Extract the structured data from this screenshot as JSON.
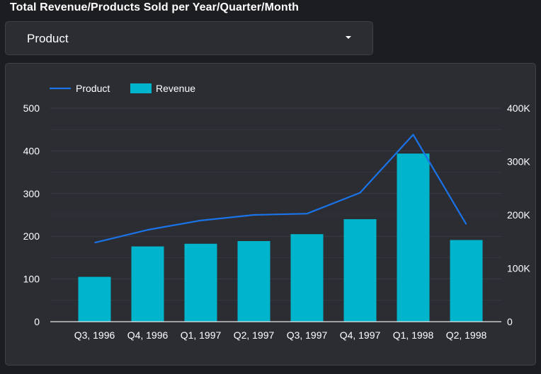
{
  "header": {
    "title": "Total Revenue/Products Sold per Year/Quarter/Month"
  },
  "filter": {
    "selected": "Product",
    "icon": "caret-down-icon"
  },
  "colors": {
    "background": "#1c1d21",
    "panel": "#2b2d33",
    "bar": "#00b4cc",
    "line": "#1a73e8",
    "grid": "#3a3d44",
    "text": "#ffffff"
  },
  "chart_data": {
    "type": "bar",
    "categories": [
      "Q3, 1996",
      "Q4, 1996",
      "Q1, 1997",
      "Q2, 1997",
      "Q3, 1997",
      "Q4, 1997",
      "Q1, 1998",
      "Q2, 1998"
    ],
    "series": [
      {
        "name": "Product",
        "type": "line",
        "axis": "left",
        "color": "#1a73e8",
        "values": [
          185,
          215,
          237,
          250,
          253,
          302,
          438,
          228
        ]
      },
      {
        "name": "Revenue",
        "type": "bar",
        "axis": "right",
        "color": "#00b4cc",
        "values": [
          84000,
          141000,
          146000,
          151000,
          164000,
          192000,
          315000,
          153000
        ]
      }
    ],
    "left_axis": {
      "ylim": [
        0,
        500
      ],
      "ticks": [
        0,
        100,
        200,
        300,
        400,
        500
      ],
      "tick_labels": [
        "0",
        "100",
        "200",
        "300",
        "400",
        "500"
      ]
    },
    "right_axis": {
      "ylim": [
        0,
        400000
      ],
      "ticks": [
        0,
        100000,
        200000,
        300000,
        400000
      ],
      "tick_labels": [
        "0",
        "100K",
        "200K",
        "300K",
        "400K"
      ]
    },
    "legend": [
      {
        "label": "Product",
        "kind": "line",
        "color": "#1a73e8"
      },
      {
        "label": "Revenue",
        "kind": "box",
        "color": "#00b4cc"
      }
    ],
    "legend_position": "top-left",
    "grid": true
  }
}
